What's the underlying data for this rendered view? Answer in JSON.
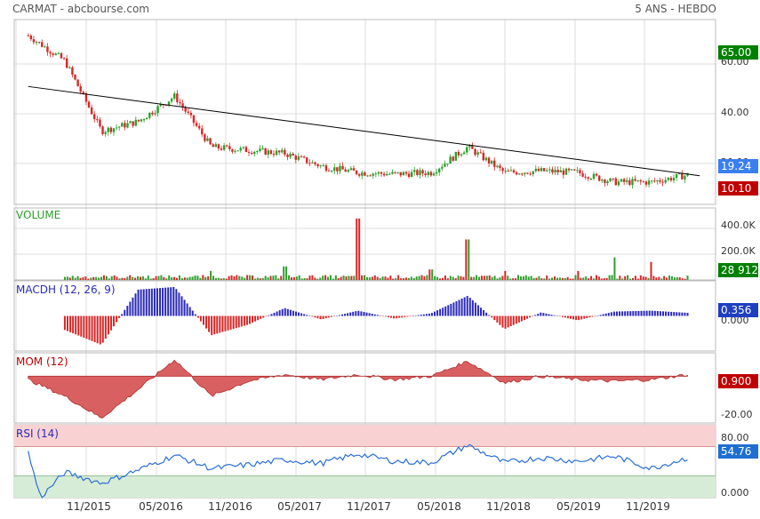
{
  "header": {
    "title": "CARMAT - abcbourse.com",
    "period": "5 ANS - HEBDO"
  },
  "colors": {
    "up": "#2ca02c",
    "down": "#d62728",
    "macd": "#2a2ab8",
    "mom_fill": "#d96060",
    "rsi_line": "#2a6fd6",
    "rsi_over": "#f8d2d2",
    "rsi_under": "#d6ecd6",
    "badge_green": "#008000",
    "badge_blue": "#3a7ff0",
    "badge_red": "#c00000",
    "grid": "#dddddd",
    "frame": "#bbbbbb"
  },
  "x_axis": {
    "ticks": [
      "11/2015",
      "05/2016",
      "11/2016",
      "05/2017",
      "11/2017",
      "05/2018",
      "11/2018",
      "05/2019",
      "11/2019"
    ]
  },
  "panels": {
    "price": {
      "title": "",
      "y_ticks": [
        "60.00",
        "40.00",
        "20.00"
      ],
      "badges": {
        "high": "65.00",
        "last": "19.24",
        "low": "10.10"
      }
    },
    "volume": {
      "title": "VOLUME",
      "y_ticks": [
        "400.0K",
        "200.0K"
      ],
      "badge": "28 912"
    },
    "macd": {
      "title": "MACDH (12, 26, 9)",
      "y_ticks": [
        "0.000"
      ],
      "badge": "0.356"
    },
    "mom": {
      "title": "MOM (12)",
      "y_ticks": [
        "-20.00"
      ],
      "badge": "0.900"
    },
    "rsi": {
      "title": "RSI (14)",
      "y_ticks": [
        "80.00",
        "0.000"
      ],
      "badge": "54.76"
    }
  },
  "chart_data": [
    {
      "type": "candlestick",
      "title": "CARMAT",
      "x": [
        "2015-08",
        "2015-11",
        "2016-02",
        "2016-05",
        "2016-08",
        "2016-11",
        "2017-02",
        "2017-05",
        "2017-08",
        "2017-11",
        "2018-02",
        "2018-05",
        "2018-08",
        "2018-11",
        "2019-02",
        "2019-05",
        "2019-08",
        "2019-11",
        "2020-02"
      ],
      "close": [
        63,
        55,
        33,
        36,
        44,
        28,
        27,
        26,
        22,
        20,
        19.5,
        20,
        28,
        20,
        20.5,
        20,
        17,
        17,
        19.24
      ],
      "trendline": {
        "from": [
          "2015-08",
          47
        ],
        "to": [
          "2020-03",
          19
        ]
      },
      "ylim": [
        10,
        68
      ],
      "high": 65.0,
      "low": 10.1,
      "last": 19.24
    },
    {
      "type": "bar",
      "title": "VOLUME",
      "x": [
        "2015-11",
        "2016-05",
        "2016-11",
        "2017-05",
        "2017-11",
        "2018-05",
        "2018-08",
        "2018-11",
        "2019-05",
        "2019-08",
        "2019-11",
        "2020-02"
      ],
      "values": [
        20000,
        25000,
        60000,
        90000,
        410000,
        70000,
        270000,
        60000,
        60000,
        150000,
        120000,
        28912
      ],
      "ylim": [
        0,
        480000
      ],
      "last": 28912
    },
    {
      "type": "bar",
      "title": "MACDH (12, 26, 9)",
      "x": [
        "2015-11",
        "2016-02",
        "2016-05",
        "2016-08",
        "2016-11",
        "2017-02",
        "2017-05",
        "2017-08",
        "2017-11",
        "2018-02",
        "2018-05",
        "2018-08",
        "2018-11",
        "2019-02",
        "2019-05",
        "2019-08",
        "2019-11",
        "2020-02"
      ],
      "values": [
        -1.6,
        -3.3,
        3.0,
        3.3,
        -2.2,
        -1.0,
        0.9,
        -0.4,
        0.6,
        -0.3,
        0.3,
        2.3,
        -1.5,
        0.4,
        -0.5,
        0.5,
        0.6,
        0.356
      ],
      "ylim": [
        -4,
        4
      ],
      "last": 0.356
    },
    {
      "type": "area",
      "title": "MOM (12)",
      "x": [
        "2015-08",
        "2015-11",
        "2016-02",
        "2016-05",
        "2016-08",
        "2016-11",
        "2017-02",
        "2017-05",
        "2017-08",
        "2017-11",
        "2018-02",
        "2018-05",
        "2018-08",
        "2018-11",
        "2019-02",
        "2019-05",
        "2019-08",
        "2019-11",
        "2020-02"
      ],
      "values": [
        -2,
        -12,
        -25,
        -8,
        10,
        -12,
        -3,
        1,
        -2,
        1,
        -2,
        0,
        9,
        -4,
        0,
        -2,
        -3,
        -2,
        0.9
      ],
      "ylim": [
        -28,
        14
      ],
      "last": 0.9
    },
    {
      "type": "line",
      "title": "RSI (14)",
      "x": [
        "2015-08",
        "2015-09",
        "2015-11",
        "2016-02",
        "2016-05",
        "2016-08",
        "2016-11",
        "2017-02",
        "2017-05",
        "2017-08",
        "2017-11",
        "2018-02",
        "2018-05",
        "2018-08",
        "2018-11",
        "2019-02",
        "2019-05",
        "2019-08",
        "2019-11",
        "2020-02"
      ],
      "values": [
        62,
        0,
        35,
        20,
        38,
        58,
        40,
        45,
        52,
        47,
        60,
        50,
        48,
        72,
        48,
        55,
        50,
        57,
        40,
        54.76
      ],
      "bands": [
        70,
        30
      ],
      "ylim": [
        0,
        100
      ],
      "last": 54.76
    }
  ]
}
